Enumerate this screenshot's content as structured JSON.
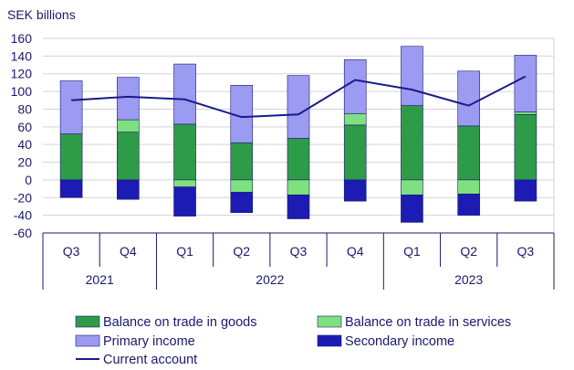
{
  "chart_data": {
    "type": "bar",
    "ylabel": "SEK billions",
    "ylim": [
      -60,
      160
    ],
    "yticks": [
      -60,
      -40,
      -20,
      0,
      20,
      40,
      60,
      80,
      100,
      120,
      140,
      160
    ],
    "grid": true,
    "categories": [
      "Q3",
      "Q4",
      "Q1",
      "Q2",
      "Q3",
      "Q4",
      "Q1",
      "Q2",
      "Q3"
    ],
    "years": [
      {
        "label": "2021",
        "span": 2
      },
      {
        "label": "2022",
        "span": 4
      },
      {
        "label": "2023",
        "span": 3
      }
    ],
    "stacked": true,
    "series": [
      {
        "name": "Balance on trade in goods",
        "color": "#2e9b48",
        "values": [
          52,
          54,
          63,
          42,
          47,
          62,
          84,
          61,
          74
        ]
      },
      {
        "name": "Balance on trade in services",
        "color": "#7ee07f",
        "values": [
          0,
          14,
          -8,
          -14,
          -17,
          13,
          -17,
          -16,
          3
        ]
      },
      {
        "name": "Primary income",
        "color": "#9b9bf2",
        "values": [
          60,
          48,
          68,
          65,
          71,
          61,
          67,
          62,
          64
        ]
      },
      {
        "name": "Secondary income",
        "color": "#1c1cb4",
        "values": [
          -20,
          -22,
          -33,
          -23,
          -27,
          -24,
          -31,
          -24,
          -24
        ]
      },
      {
        "name": "Current account",
        "type": "line",
        "color": "#1a1a8c",
        "values": [
          90,
          94,
          91,
          71,
          74,
          113,
          102,
          84,
          117
        ]
      }
    ],
    "legend_position": "bottom"
  }
}
